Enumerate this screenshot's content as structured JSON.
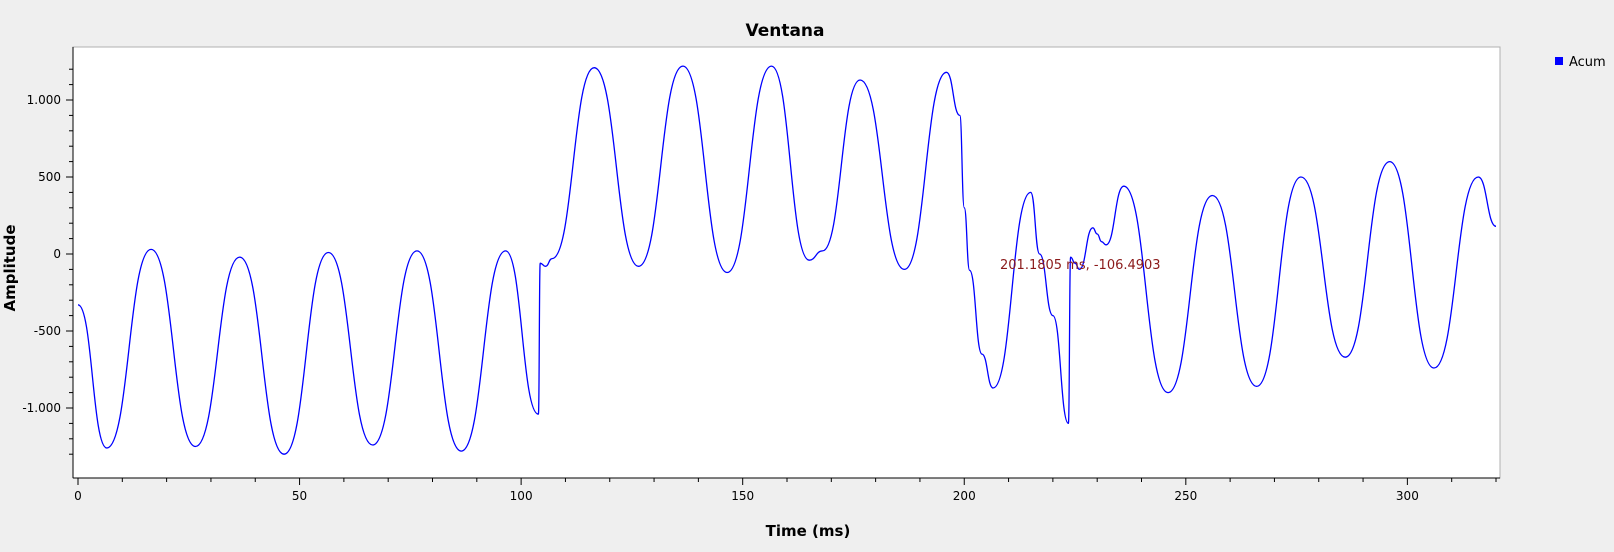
{
  "chart_data": {
    "type": "line",
    "title": "Ventana",
    "xlabel": "Time (ms)",
    "ylabel": "Amplitude",
    "xlim": [
      0,
      320
    ],
    "ylim": [
      -1400,
      1300
    ],
    "grid": false,
    "legend": {
      "position": "right",
      "entries": [
        "Acum"
      ]
    },
    "x_ticks": [
      0,
      50,
      100,
      150,
      200,
      250,
      300
    ],
    "x_tick_labels": [
      "0",
      "50",
      "100",
      "150",
      "200",
      "250",
      "300"
    ],
    "y_ticks": [
      1000,
      500,
      0,
      -500,
      -1000
    ],
    "y_tick_labels": [
      "1.000",
      "500",
      "0",
      "-500",
      "-1.000"
    ],
    "annotation": {
      "text": "201.1805 ms, -106.4903",
      "x": 201.18,
      "y": -106.49
    },
    "colors": {
      "series": "#0000ff",
      "annotation": "#8b1a1a"
    },
    "series": [
      {
        "name": "Acum",
        "points": [
          [
            0,
            -330
          ],
          [
            6.5,
            -1260
          ],
          [
            16.5,
            30
          ],
          [
            26.5,
            -1250
          ],
          [
            36.5,
            -20
          ],
          [
            46.5,
            -1300
          ],
          [
            56.5,
            10
          ],
          [
            66.5,
            -1240
          ],
          [
            76.5,
            20
          ],
          [
            86.5,
            -1280
          ],
          [
            96.5,
            20
          ],
          [
            103.9,
            -1040
          ],
          [
            104.3,
            -60
          ],
          [
            105.5,
            -80
          ],
          [
            107,
            -30
          ],
          [
            116.5,
            1210
          ],
          [
            126.5,
            -80
          ],
          [
            136.5,
            1220
          ],
          [
            146.5,
            -120
          ],
          [
            156.5,
            1220
          ],
          [
            165,
            -40
          ],
          [
            168,
            20
          ],
          [
            176.5,
            1130
          ],
          [
            186.5,
            -100
          ],
          [
            196,
            1180
          ],
          [
            199,
            900
          ],
          [
            200,
            300
          ],
          [
            201.2,
            -106
          ],
          [
            204,
            -650
          ],
          [
            206.5,
            -870
          ],
          [
            215,
            400
          ],
          [
            217,
            0
          ],
          [
            220,
            -400
          ],
          [
            223.5,
            -1100
          ],
          [
            224,
            -20
          ],
          [
            225,
            -60
          ],
          [
            226,
            -100
          ],
          [
            229,
            170
          ],
          [
            230,
            130
          ],
          [
            231,
            80
          ],
          [
            232,
            60
          ],
          [
            236,
            440
          ],
          [
            246,
            -900
          ],
          [
            256,
            380
          ],
          [
            266,
            -860
          ],
          [
            276,
            500
          ],
          [
            286,
            -670
          ],
          [
            296,
            600
          ],
          [
            306,
            -740
          ],
          [
            316,
            500
          ],
          [
            320,
            180
          ]
        ]
      }
    ]
  }
}
